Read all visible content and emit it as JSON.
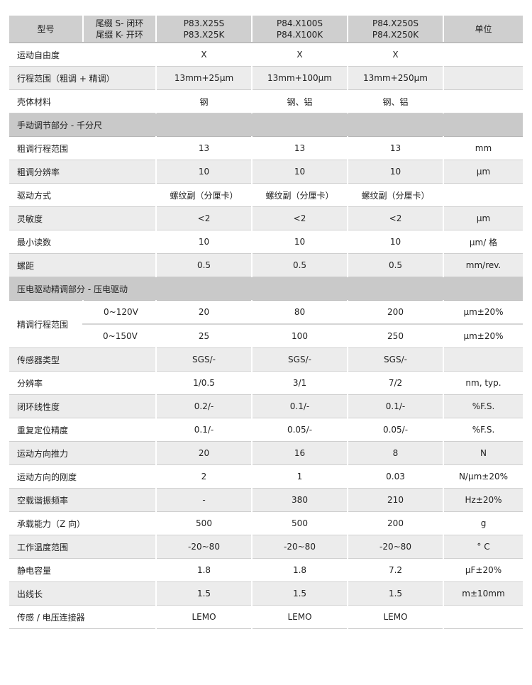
{
  "header": {
    "model": "型号",
    "suffix": [
      "尾缀 S- 闭环",
      "尾缀 K- 开环"
    ],
    "products": [
      [
        "P83.X25S",
        "P83.X25K"
      ],
      [
        "P84.X100S",
        "P84.X100K"
      ],
      [
        "P84.X250S",
        "P84.X250K"
      ]
    ],
    "unit": "单位"
  },
  "rows_a": [
    {
      "label": "运动自由度",
      "values": [
        "X",
        "X",
        "X"
      ],
      "unit": ""
    },
    {
      "label": "行程范围（粗调 + 精调）",
      "values": [
        "13mm+25μm",
        "13mm+100μm",
        "13mm+250μm"
      ],
      "unit": ""
    },
    {
      "label": "壳体材料",
      "values": [
        "钢",
        "钢、铝",
        "钢、铝"
      ],
      "unit": ""
    }
  ],
  "section1": "手动调节部分 - 千分尺",
  "rows_b": [
    {
      "label": "粗调行程范围",
      "values": [
        "13",
        "13",
        "13"
      ],
      "unit": "mm"
    },
    {
      "label": "粗调分辨率",
      "values": [
        "10",
        "10",
        "10"
      ],
      "unit": "μm"
    },
    {
      "label": "驱动方式",
      "values": [
        "螺纹副（分厘卡）",
        "螺纹副（分厘卡）",
        "螺纹副（分厘卡）"
      ],
      "unit": ""
    },
    {
      "label": "灵敏度",
      "values": [
        "<2",
        "<2",
        "<2"
      ],
      "unit": "μm"
    },
    {
      "label": "最小读数",
      "values": [
        "10",
        "10",
        "10"
      ],
      "unit": "μm/ 格"
    },
    {
      "label": "螺距",
      "values": [
        "0.5",
        "0.5",
        "0.5"
      ],
      "unit": "mm/rev."
    }
  ],
  "section2": "压电驱动精调部分 - 压电驱动",
  "fine": {
    "label": "精调行程范围",
    "sub": [
      {
        "voltage": "0~120V",
        "values": [
          "20",
          "80",
          "200"
        ],
        "unit": "μm±20%"
      },
      {
        "voltage": "0~150V",
        "values": [
          "25",
          "100",
          "250"
        ],
        "unit": "μm±20%"
      }
    ]
  },
  "rows_c": [
    {
      "label": "传感器类型",
      "values": [
        "SGS/-",
        "SGS/-",
        "SGS/-"
      ],
      "unit": ""
    },
    {
      "label": "分辨率",
      "values": [
        "1/0.5",
        "3/1",
        "7/2"
      ],
      "unit": "nm, typ."
    },
    {
      "label": "闭环线性度",
      "values": [
        "0.2/-",
        "0.1/-",
        "0.1/-"
      ],
      "unit": "%F.S."
    },
    {
      "label": "重复定位精度",
      "values": [
        "0.1/-",
        "0.05/-",
        "0.05/-"
      ],
      "unit": "%F.S."
    },
    {
      "label": "运动方向推力",
      "values": [
        "20",
        "16",
        "8"
      ],
      "unit": "N"
    },
    {
      "label": "运动方向的刚度",
      "values": [
        "2",
        "1",
        "0.03"
      ],
      "unit": "N/μm±20%"
    },
    {
      "label": "空载谐振频率",
      "values": [
        "-",
        "380",
        "210"
      ],
      "unit": "Hz±20%"
    },
    {
      "label": "承载能力（Z 向）",
      "values": [
        "500",
        "500",
        "200"
      ],
      "unit": "g"
    },
    {
      "label": "工作温度范围",
      "values": [
        "-20~80",
        "-20~80",
        "-20~80"
      ],
      "unit": "° C"
    },
    {
      "label": "静电容量",
      "values": [
        "1.8",
        "1.8",
        "7.2"
      ],
      "unit": "μF±20%"
    },
    {
      "label": "出线长",
      "values": [
        "1.5",
        "1.5",
        "1.5"
      ],
      "unit": "m±10mm"
    },
    {
      "label": "传感 / 电压连接器",
      "values": [
        "LEMO",
        "LEMO",
        "LEMO"
      ],
      "unit": ""
    }
  ]
}
